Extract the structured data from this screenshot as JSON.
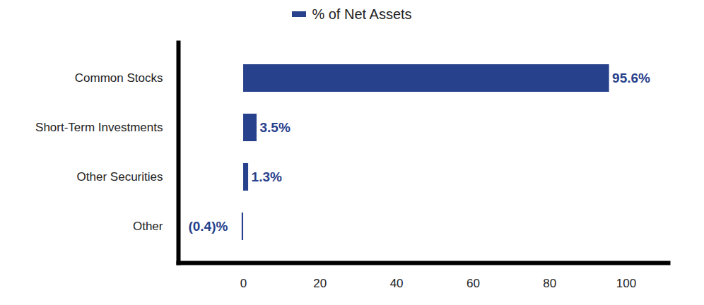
{
  "chart_data": {
    "type": "bar",
    "orientation": "horizontal",
    "categories": [
      "Common Stocks",
      "Short-Term Investments",
      "Other Securities",
      "Other"
    ],
    "series": [
      {
        "name": "% of Net Assets",
        "color": "#27418c",
        "values": [
          95.6,
          3.5,
          1.3,
          -0.4
        ],
        "value_labels": [
          "95.6%",
          "3.5%",
          "1.3%",
          "(0.4)%"
        ]
      }
    ],
    "xlim": [
      -17,
      111
    ],
    "xticks": [
      0,
      20,
      40,
      60,
      80,
      100
    ],
    "grid": false,
    "legend": "top",
    "data_labels": true
  }
}
